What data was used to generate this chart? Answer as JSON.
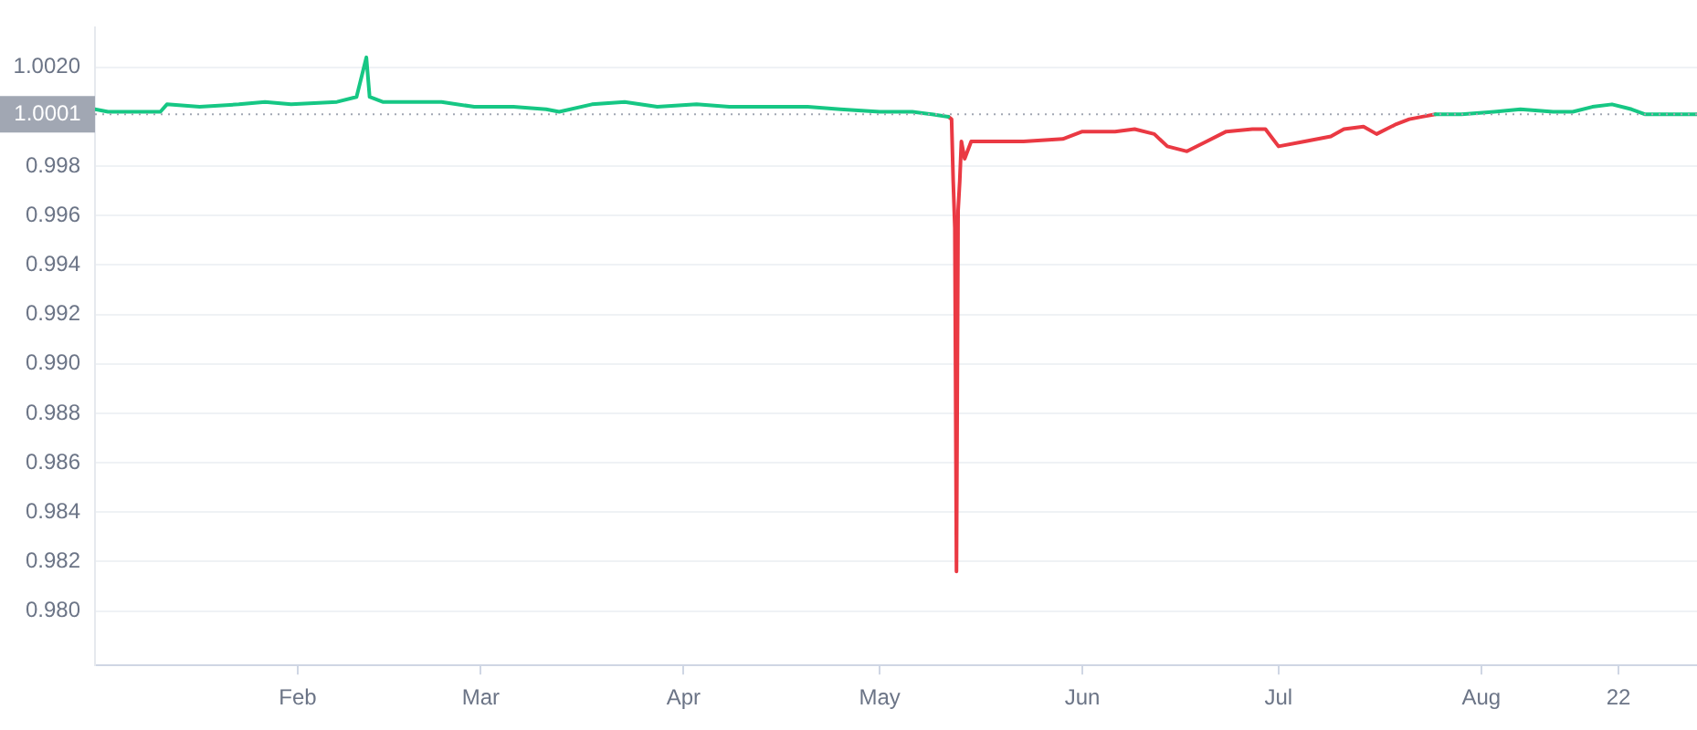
{
  "chart_data": {
    "type": "line",
    "xlim": [
      "--01-01",
      "--09-03"
    ],
    "xticks": [
      {
        "value": "--02-01",
        "label": "Feb"
      },
      {
        "value": "--03-01",
        "label": "Mar"
      },
      {
        "value": "--04-01",
        "label": "Apr"
      },
      {
        "value": "--05-01",
        "label": "May"
      },
      {
        "value": "--06-01",
        "label": "Jun"
      },
      {
        "value": "--07-01",
        "label": "Jul"
      },
      {
        "value": "--08-01",
        "label": "Aug"
      },
      {
        "value": "--08-22",
        "label": "22"
      }
    ],
    "ylim": [
      0.9778,
      1.0036
    ],
    "yticks": [
      {
        "value": 0.98,
        "label": "0.980"
      },
      {
        "value": 0.982,
        "label": "0.982"
      },
      {
        "value": 0.984,
        "label": "0.984"
      },
      {
        "value": 0.986,
        "label": "0.986"
      },
      {
        "value": 0.988,
        "label": "0.988"
      },
      {
        "value": 0.99,
        "label": "0.990"
      },
      {
        "value": 0.992,
        "label": "0.992"
      },
      {
        "value": 0.994,
        "label": "0.994"
      },
      {
        "value": 0.996,
        "label": "0.996"
      },
      {
        "value": 0.998,
        "label": "0.998"
      },
      {
        "value": 1.002,
        "label": "1.0020"
      }
    ],
    "grid": "y",
    "legend": false,
    "marker": "none",
    "line_style": "solid",
    "ref_lines": [
      {
        "axis": "y",
        "value": 1.0001,
        "label": "1.0001",
        "line_style": "dotted",
        "color": "#a1a7b3"
      }
    ],
    "series": [
      {
        "color": "#16c784",
        "x": [
          "--01-01",
          "--01-03",
          "--01-06",
          "--01-11",
          "--01-12",
          "--01-17",
          "--01-23",
          "--01-27",
          "--01-31",
          "--02-07",
          "--02-10",
          "--02-11T12:00",
          "--02-12",
          "--02-14",
          "--02-20",
          "--02-23",
          "--02-28",
          "--03-06",
          "--03-11",
          "--03-13",
          "--03-18",
          "--03-23",
          "--03-28",
          "--04-03",
          "--04-08",
          "--04-14",
          "--04-20",
          "--04-25",
          "--05-01",
          "--05-06",
          "--05-09",
          "--05-11T12:00",
          "--05-12",
          "--07-25",
          "--07-29",
          "--08-03",
          "--08-07",
          "--08-12",
          "--08-15",
          "--08-18",
          "--08-21",
          "--08-24",
          "--08-26",
          "--08-31",
          "--09-03"
        ],
        "values": [
          1.0003,
          1.0002,
          1.0002,
          1.0002,
          1.0005,
          1.0004,
          1.0005,
          1.0006,
          1.0005,
          1.0006,
          1.0008,
          1.0024,
          1.0008,
          1.0006,
          1.0006,
          1.0006,
          1.0004,
          1.0004,
          1.0003,
          1.0002,
          1.0005,
          1.0006,
          1.0004,
          1.0005,
          1.0004,
          1.0004,
          1.0004,
          1.0003,
          1.0002,
          1.0002,
          1.0001,
          1.0,
          null,
          1.0001,
          1.0001,
          1.0002,
          1.0003,
          1.0002,
          1.0002,
          1.0004,
          1.0005,
          1.0003,
          1.0001,
          1.0001,
          1.0001
        ]
      },
      {
        "color": "#ea3943",
        "x": [
          "--05-11T12:00",
          "--05-12",
          "--05-12T06:00",
          "--05-12T12:00",
          "--05-12T18:00",
          "--05-13",
          "--05-13T06:00",
          "--05-13T12:00",
          "--05-14",
          "--05-15",
          "--05-23",
          "--05-29",
          "--06-01",
          "--06-06",
          "--06-09",
          "--06-12",
          "--06-14",
          "--06-17",
          "--06-20",
          "--06-23",
          "--06-27",
          "--06-29",
          "--07-01",
          "--07-05",
          "--07-09",
          "--07-11",
          "--07-14",
          "--07-16",
          "--07-19",
          "--07-21",
          "--07-23",
          "--07-25"
        ],
        "values": [
          1.0,
          0.9999,
          0.9974,
          0.9955,
          0.9816,
          0.9962,
          0.9974,
          0.999,
          0.9983,
          0.999,
          0.999,
          0.9991,
          0.9994,
          0.9994,
          0.9995,
          0.9993,
          0.9988,
          0.9986,
          0.999,
          0.9994,
          0.9995,
          0.9995,
          0.9988,
          0.999,
          0.9992,
          0.9995,
          0.9996,
          0.9993,
          0.9997,
          0.9999,
          1.0,
          1.0001
        ]
      }
    ]
  }
}
